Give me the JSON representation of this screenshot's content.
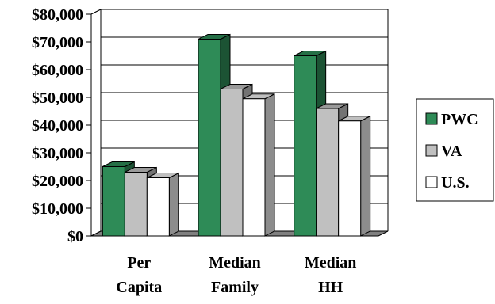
{
  "chart_data": {
    "type": "bar",
    "title": "",
    "xlabel": "",
    "ylabel": "",
    "categories": [
      [
        "Per",
        "Capita"
      ],
      [
        "Median",
        "Family"
      ],
      [
        "Median",
        "HH"
      ]
    ],
    "series": [
      {
        "name": "PWC",
        "values": [
          25000,
          71000,
          65000
        ],
        "color": "#2e8b57"
      },
      {
        "name": "VA",
        "values": [
          23000,
          53000,
          46000
        ],
        "color": "#c0c0c0"
      },
      {
        "name": "U.S.",
        "values": [
          21000,
          49500,
          41500
        ],
        "color": "#ffffff"
      }
    ],
    "ylim": [
      0,
      80000
    ],
    "yticks": [
      "$0",
      "$10,000",
      "$20,000",
      "$30,000",
      "$40,000",
      "$50,000",
      "$60,000",
      "$70,000",
      "$80,000"
    ],
    "grid": true,
    "legend_position": "right",
    "style": "3d-clustered-column"
  }
}
